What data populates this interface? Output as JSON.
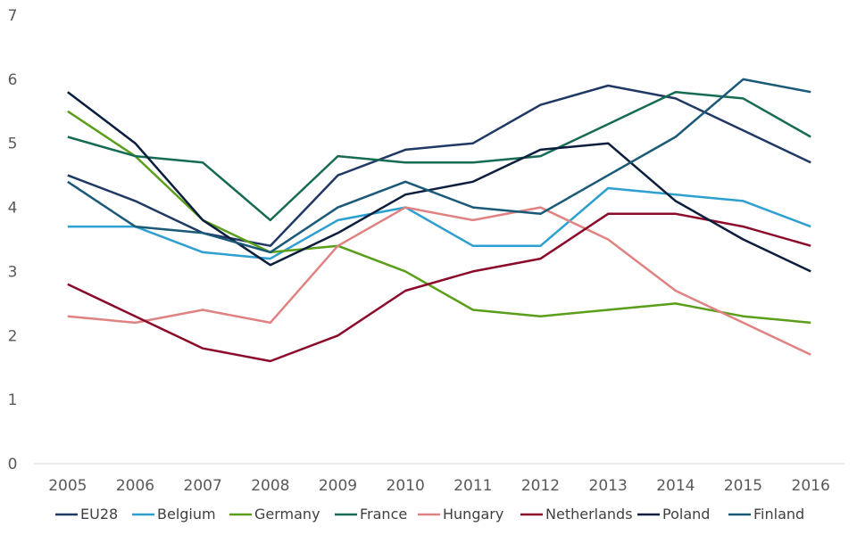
{
  "chart_data": {
    "type": "line",
    "title": "",
    "xlabel": "",
    "ylabel": "",
    "x": [
      "2005",
      "2006",
      "2007",
      "2008",
      "2009",
      "2010",
      "2011",
      "2012",
      "2013",
      "2014",
      "2015",
      "2016"
    ],
    "y_ticks": [
      "0",
      "1",
      "2",
      "3",
      "4",
      "5",
      "6",
      "7"
    ],
    "ylim": [
      0,
      7
    ],
    "grid": false,
    "legend_position": "bottom",
    "series": [
      {
        "name": "EU28",
        "color": "#1f3864",
        "values": [
          4.5,
          4.1,
          3.6,
          3.4,
          4.5,
          4.9,
          5.0,
          5.6,
          5.9,
          5.7,
          5.2,
          4.7
        ]
      },
      {
        "name": "Belgium",
        "color": "#2e9fd1",
        "values": [
          3.7,
          3.7,
          3.3,
          3.2,
          3.8,
          4.0,
          3.4,
          3.4,
          4.3,
          4.2,
          4.1,
          3.7
        ]
      },
      {
        "name": "Germany",
        "color": "#5a9e1a",
        "values": [
          5.5,
          4.8,
          3.8,
          3.3,
          3.4,
          3.0,
          2.4,
          2.3,
          2.4,
          2.5,
          2.3,
          2.2
        ]
      },
      {
        "name": "France",
        "color": "#166b55",
        "values": [
          5.1,
          4.8,
          4.7,
          3.8,
          4.8,
          4.7,
          4.7,
          4.8,
          5.3,
          5.8,
          5.7,
          5.1
        ]
      },
      {
        "name": "Hungary",
        "color": "#e08282",
        "values": [
          2.3,
          2.2,
          2.4,
          2.2,
          3.4,
          4.0,
          3.8,
          4.0,
          3.5,
          2.7,
          2.2,
          1.7
        ]
      },
      {
        "name": "Netherlands",
        "color": "#8b0a2a",
        "values": [
          2.8,
          2.3,
          1.8,
          1.6,
          2.0,
          2.7,
          3.0,
          3.2,
          3.9,
          3.9,
          3.7,
          3.4
        ]
      },
      {
        "name": "Poland",
        "color": "#0b1e3d",
        "values": [
          5.8,
          5.0,
          3.8,
          3.1,
          3.6,
          4.2,
          4.4,
          4.9,
          5.0,
          4.1,
          3.5,
          3.0
        ]
      },
      {
        "name": "Finland",
        "color": "#1a5a78",
        "values": [
          4.4,
          3.7,
          3.6,
          3.3,
          4.0,
          4.4,
          4.0,
          3.9,
          4.5,
          5.1,
          6.0,
          5.8
        ]
      }
    ]
  }
}
